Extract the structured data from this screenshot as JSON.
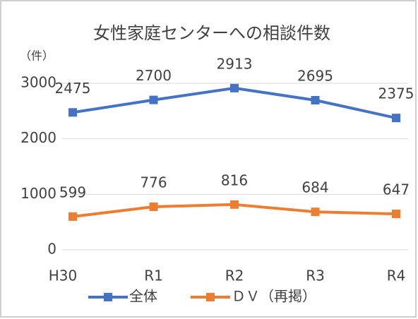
{
  "chart_data": {
    "type": "line",
    "title": "女性家庭センターへの相談件数",
    "y_label": "（件）",
    "categories": [
      "H30",
      "R1",
      "R2",
      "R3",
      "R4"
    ],
    "series": [
      {
        "name": "全体",
        "color": "#4472c4",
        "values": [
          2475,
          2700,
          2913,
          2695,
          2375
        ]
      },
      {
        "name": "ＤＶ（再掲）",
        "color": "#ed7d31",
        "values": [
          599,
          776,
          816,
          684,
          647
        ]
      }
    ],
    "ylim": [
      0,
      3000
    ],
    "yticks": [
      0,
      1000,
      2000,
      3000
    ],
    "grid": true,
    "legend": "bottom"
  }
}
